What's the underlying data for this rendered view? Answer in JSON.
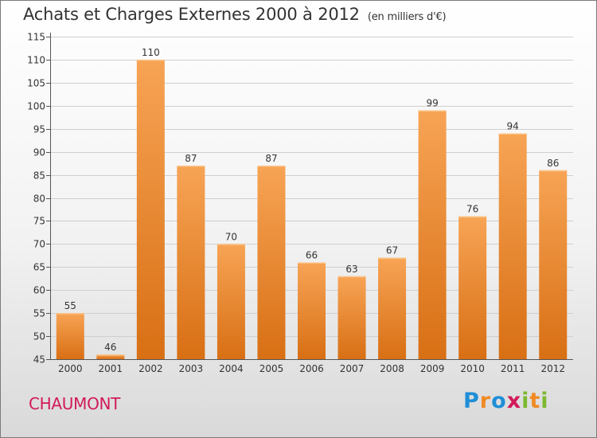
{
  "title": "Achats et Charges Externes 2000 à 2012",
  "unit_label": "(en milliers d'€)",
  "commune": "CHAUMONT",
  "logo": {
    "text": "Proxiti",
    "letters": [
      {
        "char": "P",
        "color": "#1f8fd6"
      },
      {
        "char": "r",
        "color": "#f08a24"
      },
      {
        "char": "o",
        "color": "#1f8fd6"
      },
      {
        "char": "x",
        "color": "#d2195a"
      },
      {
        "char": "i",
        "color": "#7cb92f"
      },
      {
        "char": "t",
        "color": "#f08a24"
      },
      {
        "char": "i",
        "color": "#7cb92f"
      }
    ]
  },
  "colors": {
    "bar_light": "#f7a455",
    "bar_dark": "#d86f14",
    "grid": "#cfcfcf",
    "axis": "#555555",
    "commune": "#d2195a"
  },
  "chart_data": {
    "type": "bar",
    "title": "Achats et Charges Externes 2000 à 2012",
    "subtitle": "(en milliers d'€)",
    "xlabel": "",
    "ylabel": "",
    "categories": [
      "2000",
      "2001",
      "2002",
      "2003",
      "2004",
      "2005",
      "2006",
      "2007",
      "2008",
      "2009",
      "2010",
      "2011",
      "2012"
    ],
    "values": [
      55,
      46,
      110,
      87,
      70,
      87,
      66,
      63,
      67,
      99,
      76,
      94,
      86
    ],
    "data_labels": [
      "55",
      "46",
      "110",
      "87",
      "70",
      "87",
      "66",
      "63",
      "67",
      "99",
      "76",
      "94",
      "86"
    ],
    "ylim": [
      45,
      115
    ],
    "yticks": [
      45,
      50,
      55,
      60,
      65,
      70,
      75,
      80,
      85,
      90,
      95,
      100,
      105,
      110,
      115
    ],
    "grid": true,
    "legend": "none"
  }
}
